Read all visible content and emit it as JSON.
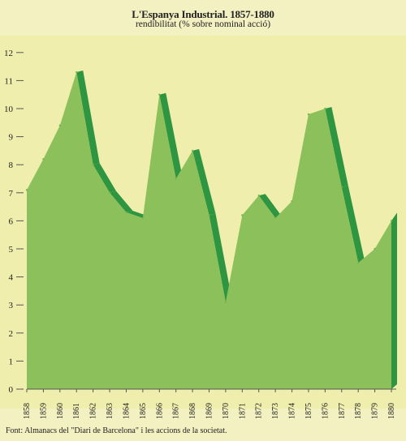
{
  "header": {
    "title": "L'Espanya Industrial. 1857-1880",
    "subtitle": "rendibilitat (% sobre nominal acció)"
  },
  "footer": {
    "source": "Font: Almanacs del \"Diari de Barcelona\" i les accions de la societat."
  },
  "colors": {
    "background": "#f3f0c2",
    "plot_background": "#f0eeac",
    "area_fill": "#8cc05a",
    "area_edge": "#7fb24e",
    "decline_band": "#2e9540"
  },
  "chart_data": {
    "type": "area",
    "title": "L'Espanya Industrial. 1857-1880",
    "subtitle": "rendibilitat (% sobre nominal acció)",
    "xlabel": "",
    "ylabel": "",
    "x": [
      "1858",
      "1859",
      "1860",
      "1861",
      "1862",
      "1863",
      "1864",
      "1865",
      "1866",
      "1867",
      "1868",
      "1869",
      "1870",
      "1871",
      "1872",
      "1873",
      "1874",
      "1875",
      "1876",
      "1877",
      "1878",
      "1879",
      "1880"
    ],
    "points": [
      {
        "x": 1858.0,
        "y": 7.1
      },
      {
        "x": 1859.0,
        "y": 8.2
      },
      {
        "x": 1860.0,
        "y": 9.4
      },
      {
        "x": 1861.0,
        "y": 11.3
      },
      {
        "x": 1862.0,
        "y": 8.0
      },
      {
        "x": 1863.0,
        "y": 7.0
      },
      {
        "x": 1864.0,
        "y": 6.3
      },
      {
        "x": 1865.0,
        "y": 6.1
      },
      {
        "x": 1866.0,
        "y": 10.5
      },
      {
        "x": 1867.0,
        "y": 7.5
      },
      {
        "x": 1868.0,
        "y": 8.5
      },
      {
        "x": 1869.0,
        "y": 6.2
      },
      {
        "x": 1870.0,
        "y": 3.1
      },
      {
        "x": 1871.0,
        "y": 6.2
      },
      {
        "x": 1872.0,
        "y": 6.9
      },
      {
        "x": 1873.0,
        "y": 6.1
      },
      {
        "x": 1874.0,
        "y": 6.7
      },
      {
        "x": 1875.0,
        "y": 9.8
      },
      {
        "x": 1876.0,
        "y": 10.0
      },
      {
        "x": 1877.0,
        "y": 7.2
      },
      {
        "x": 1878.0,
        "y": 4.5
      },
      {
        "x": 1879.0,
        "y": 5.0
      },
      {
        "x": 1880.0,
        "y": 6.0
      }
    ],
    "yticks": [
      0,
      1,
      2,
      3,
      4,
      5,
      6,
      7,
      8,
      9,
      10,
      11,
      12
    ],
    "ylim": [
      0,
      12.5
    ],
    "xlim": [
      1858,
      1880
    ],
    "grid": false,
    "legend": "none"
  }
}
